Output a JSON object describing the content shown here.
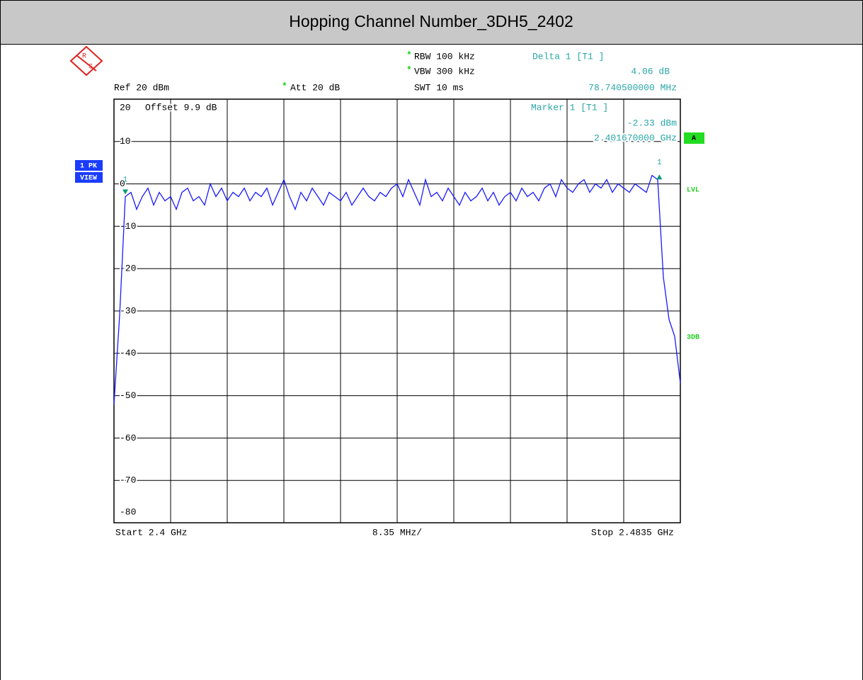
{
  "chart_data": {
    "type": "line",
    "title": "Hopping Channel Number_3DH5_2402",
    "ref_level": "Ref 20 dBm",
    "changed_flag": "*",
    "attenuation": "Att 20 dB",
    "rbw": "RBW 100 kHz",
    "vbw": "VBW 300 kHz",
    "sweep_time": "SWT 10 ms",
    "offset": "Offset 9.9 dB",
    "delta_marker": {
      "name": "Delta 1 [T1 ]",
      "level": "4.06 dB",
      "frequency": "78.740500000 MHz"
    },
    "marker_readout": {
      "name": "Marker 1 [T1 ]",
      "level": "-2.33 dBm",
      "frequency": "2.401670000 GHz"
    },
    "trace_badges": [
      "1 PK",
      "VIEW"
    ],
    "screen_badge": "A",
    "side_labels": [
      "LVL",
      "3DB"
    ],
    "logo_letters": [
      "R",
      "S"
    ],
    "start_label": "Start 2.4 GHz",
    "span_label": "8.35 MHz/",
    "stop_label": "Stop 2.4835 GHz",
    "xlim": [
      2.4,
      2.4835
    ],
    "ylim": [
      -80,
      20
    ],
    "yticks": [
      20,
      10,
      0,
      -10,
      -20,
      -30,
      -40,
      -50,
      -60,
      -70,
      -80
    ],
    "grid": true,
    "markers": [
      {
        "label": "1",
        "x": 2.40167,
        "y": -2.33,
        "direction": "down"
      },
      {
        "label": "1",
        "x": 2.4804105,
        "y": 1.73,
        "direction": "up"
      }
    ],
    "series": [
      {
        "name": "1 PK",
        "color": "#1a1aff",
        "x": [
          2.4,
          2.400835,
          2.40167,
          2.402505,
          2.40334,
          2.404175,
          2.40501,
          2.405845,
          2.40668,
          2.407515,
          2.40835,
          2.409185,
          2.41002,
          2.410855,
          2.41169,
          2.412525,
          2.41336,
          2.414195,
          2.41503,
          2.415865,
          2.4167,
          2.417535,
          2.41837,
          2.419205,
          2.42004,
          2.420875,
          2.42171,
          2.422545,
          2.42338,
          2.424215,
          2.42505,
          2.425885,
          2.42672,
          2.427555,
          2.42839,
          2.429225,
          2.43006,
          2.430895,
          2.43173,
          2.432565,
          2.4334,
          2.434235,
          2.43507,
          2.435905,
          2.43674,
          2.437575,
          2.43841,
          2.439245,
          2.44008,
          2.440915,
          2.44175,
          2.442585,
          2.44342,
          2.444255,
          2.44509,
          2.445925,
          2.44676,
          2.447595,
          2.44843,
          2.449265,
          2.4501,
          2.450935,
          2.45177,
          2.452605,
          2.45344,
          2.454275,
          2.45511,
          2.455945,
          2.45678,
          2.457615,
          2.45845,
          2.459285,
          2.46012,
          2.460955,
          2.46179,
          2.462625,
          2.46346,
          2.464295,
          2.46513,
          2.465965,
          2.4668,
          2.467635,
          2.46847,
          2.469305,
          2.47014,
          2.470975,
          2.47181,
          2.472645,
          2.47348,
          2.474315,
          2.47515,
          2.475985,
          2.47682,
          2.477655,
          2.47849,
          2.479325,
          2.48016,
          2.480995,
          2.48183,
          2.482665,
          2.4835
        ],
        "values": [
          -52,
          -31,
          -3,
          -2,
          -6,
          -3,
          -1,
          -5,
          -2,
          -4,
          -3,
          -6,
          -2,
          -1,
          -4,
          -3,
          -5,
          0,
          -3,
          -1,
          -4,
          -2,
          -3,
          -1,
          -4,
          -2,
          -3,
          -1,
          -5,
          -2,
          1,
          -3,
          -6,
          -2,
          -4,
          -1,
          -3,
          -5,
          -2,
          -3,
          -4,
          -2,
          -5,
          -3,
          -1,
          -3,
          -4,
          -2,
          -3,
          -1,
          0,
          -3,
          1,
          -2,
          -5,
          1,
          -3,
          -2,
          -4,
          -1,
          -3,
          -5,
          -2,
          -4,
          -3,
          -1,
          -4,
          -2,
          -5,
          -3,
          -2,
          -4,
          -1,
          -3,
          -2,
          -4,
          -1,
          0,
          -3,
          1,
          -1,
          -2,
          0,
          1,
          -2,
          0,
          -1,
          1,
          -2,
          0,
          -1,
          -2,
          0,
          -1,
          -2,
          2,
          1,
          -22,
          -32,
          -36,
          -47
        ]
      }
    ]
  }
}
